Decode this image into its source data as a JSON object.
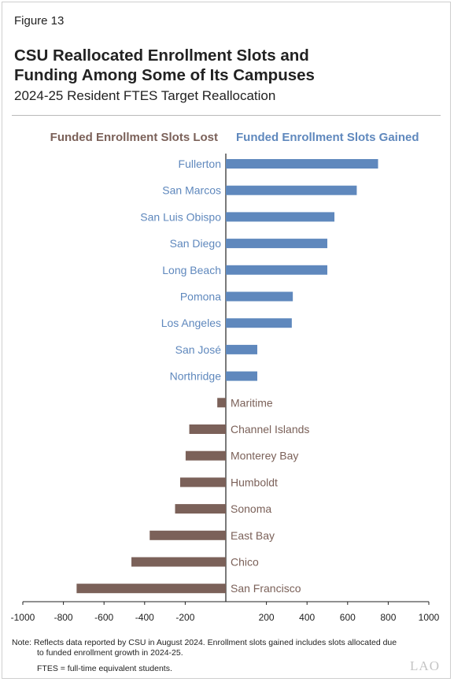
{
  "figure_label": "Figure 13",
  "title_line1": "CSU Reallocated Enrollment Slots and",
  "title_line2": "Funding Among Some of Its Campuses",
  "subtitle": "2024-25 Resident FTES Target Reallocation",
  "legend": {
    "lost": "Funded Enrollment Slots Lost",
    "gained": "Funded Enrollment Slots Gained"
  },
  "colors": {
    "gained": "#5f88bd",
    "lost": "#7b6159",
    "axis": "#222222"
  },
  "notes": {
    "line1": "Note: Reflects data reported by CSU in August 2024. Enrollment slots gained includes slots allocated due",
    "line2": "to funded enrollment growth in 2024-25.",
    "fte": "FTES = full-time equivalent students."
  },
  "logo_text": "LAO",
  "chart_data": {
    "type": "bar",
    "orientation": "horizontal",
    "title": "CSU Reallocated Enrollment Slots and Funding Among Some of Its Campuses",
    "subtitle": "2024-25 Resident FTES Target Reallocation",
    "xlabel": "",
    "ylabel": "",
    "xlim": [
      -1000,
      1000
    ],
    "x_ticks": [
      -1000,
      -800,
      -600,
      -400,
      -200,
      200,
      400,
      600,
      800,
      1000
    ],
    "x_tick_labels": [
      "-1000",
      "-800",
      "-600",
      "-400",
      "-200",
      "200",
      "400",
      "600",
      "800",
      "1000"
    ],
    "grid": false,
    "legend_position": "top",
    "categories": [
      "Fullerton",
      "San Marcos",
      "San Luis Obispo",
      "San Diego",
      "Long Beach",
      "Pomona",
      "Los Angeles",
      "San José",
      "Northridge",
      "Maritime",
      "Channel Islands",
      "Monterey Bay",
      "Humboldt",
      "Sonoma",
      "East Bay",
      "Chico",
      "San Francisco"
    ],
    "values": [
      750,
      645,
      535,
      500,
      500,
      330,
      325,
      155,
      155,
      -42,
      -180,
      -198,
      -225,
      -250,
      -375,
      -465,
      -735
    ],
    "series": [
      {
        "name": "Funded Enrollment Slots Gained",
        "sign": "positive"
      },
      {
        "name": "Funded Enrollment Slots Lost",
        "sign": "negative"
      }
    ]
  }
}
